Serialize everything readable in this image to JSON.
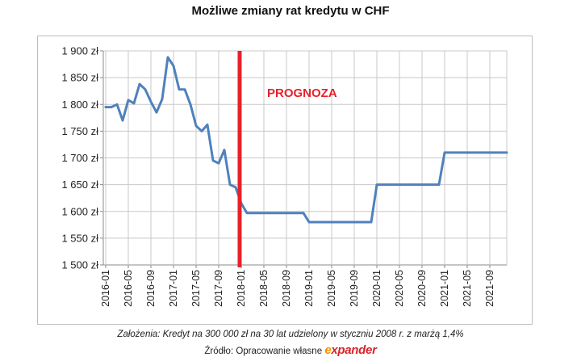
{
  "chart_data": {
    "type": "line",
    "title": "Możliwe zmiany rat kredytu w CHF",
    "annotation": "PROGNOZA",
    "forecast_start": "2018-01",
    "ylim": [
      1500,
      1900
    ],
    "yticks": [
      1500,
      1550,
      1600,
      1650,
      1700,
      1750,
      1800,
      1850,
      1900
    ],
    "ytick_labels": [
      "1 500 zł",
      "1 550 zł",
      "1 600 zł",
      "1 650 zł",
      "1 700 zł",
      "1 750 zł",
      "1 800 zł",
      "1 850 zł",
      "1 900 zł"
    ],
    "xtick_labels": [
      "2016-01",
      "2016-05",
      "2016-09",
      "2017-01",
      "2017-05",
      "2017-09",
      "2018-01",
      "2018-05",
      "2018-09",
      "2019-01",
      "2019-05",
      "2019-09",
      "2020-01",
      "2020-05",
      "2020-09",
      "2021-01",
      "2021-05",
      "2021-09"
    ],
    "grid": true,
    "legend": "none",
    "colors": {
      "series": "#4f81bd",
      "forecast_line": "#e8202a",
      "annotation": "#e8202a",
      "grid": "#c8c8c8"
    },
    "series": [
      {
        "x": [
          "2016-01",
          "2016-02",
          "2016-03",
          "2016-04",
          "2016-05",
          "2016-06",
          "2016-07",
          "2016-08",
          "2016-09",
          "2016-10",
          "2016-11",
          "2016-12",
          "2017-01",
          "2017-02",
          "2017-03",
          "2017-04",
          "2017-05",
          "2017-06",
          "2017-07",
          "2017-08",
          "2017-09",
          "2017-10",
          "2017-11",
          "2017-12",
          "2018-01",
          "2018-02",
          "2018-03",
          "2018-04",
          "2018-05",
          "2018-06",
          "2018-07",
          "2018-08",
          "2018-09",
          "2018-10",
          "2018-11",
          "2018-12",
          "2019-01",
          "2019-02",
          "2019-03",
          "2019-04",
          "2019-05",
          "2019-06",
          "2019-07",
          "2019-08",
          "2019-09",
          "2019-10",
          "2019-11",
          "2019-12",
          "2020-01",
          "2020-02",
          "2020-03",
          "2020-04",
          "2020-05",
          "2020-06",
          "2020-07",
          "2020-08",
          "2020-09",
          "2020-10",
          "2020-11",
          "2020-12",
          "2021-01",
          "2021-02",
          "2021-03",
          "2021-04",
          "2021-05",
          "2021-06",
          "2021-07",
          "2021-08",
          "2021-09",
          "2021-10",
          "2021-11",
          "2021-12"
        ],
        "values": [
          1795,
          1795,
          1800,
          1770,
          1808,
          1802,
          1838,
          1828,
          1805,
          1785,
          1810,
          1888,
          1872,
          1828,
          1828,
          1800,
          1760,
          1750,
          1762,
          1695,
          1690,
          1715,
          1650,
          1645,
          1615,
          1597,
          1597,
          1597,
          1597,
          1597,
          1597,
          1597,
          1597,
          1597,
          1597,
          1597,
          1580,
          1580,
          1580,
          1580,
          1580,
          1580,
          1580,
          1580,
          1580,
          1580,
          1580,
          1580,
          1650,
          1650,
          1650,
          1650,
          1650,
          1650,
          1650,
          1650,
          1650,
          1650,
          1650,
          1650,
          1710,
          1710,
          1710,
          1710,
          1710,
          1710,
          1710,
          1710,
          1710,
          1710,
          1710,
          1710
        ]
      }
    ]
  },
  "footer": {
    "assumptions": "Założenia: Kredyt na 300 000 zł na 30 lat udzielony w styczniu 2008 r. z marżą 1,4%",
    "source_label": "Źródło: Opracowanie własne",
    "logo_text": "expander"
  }
}
